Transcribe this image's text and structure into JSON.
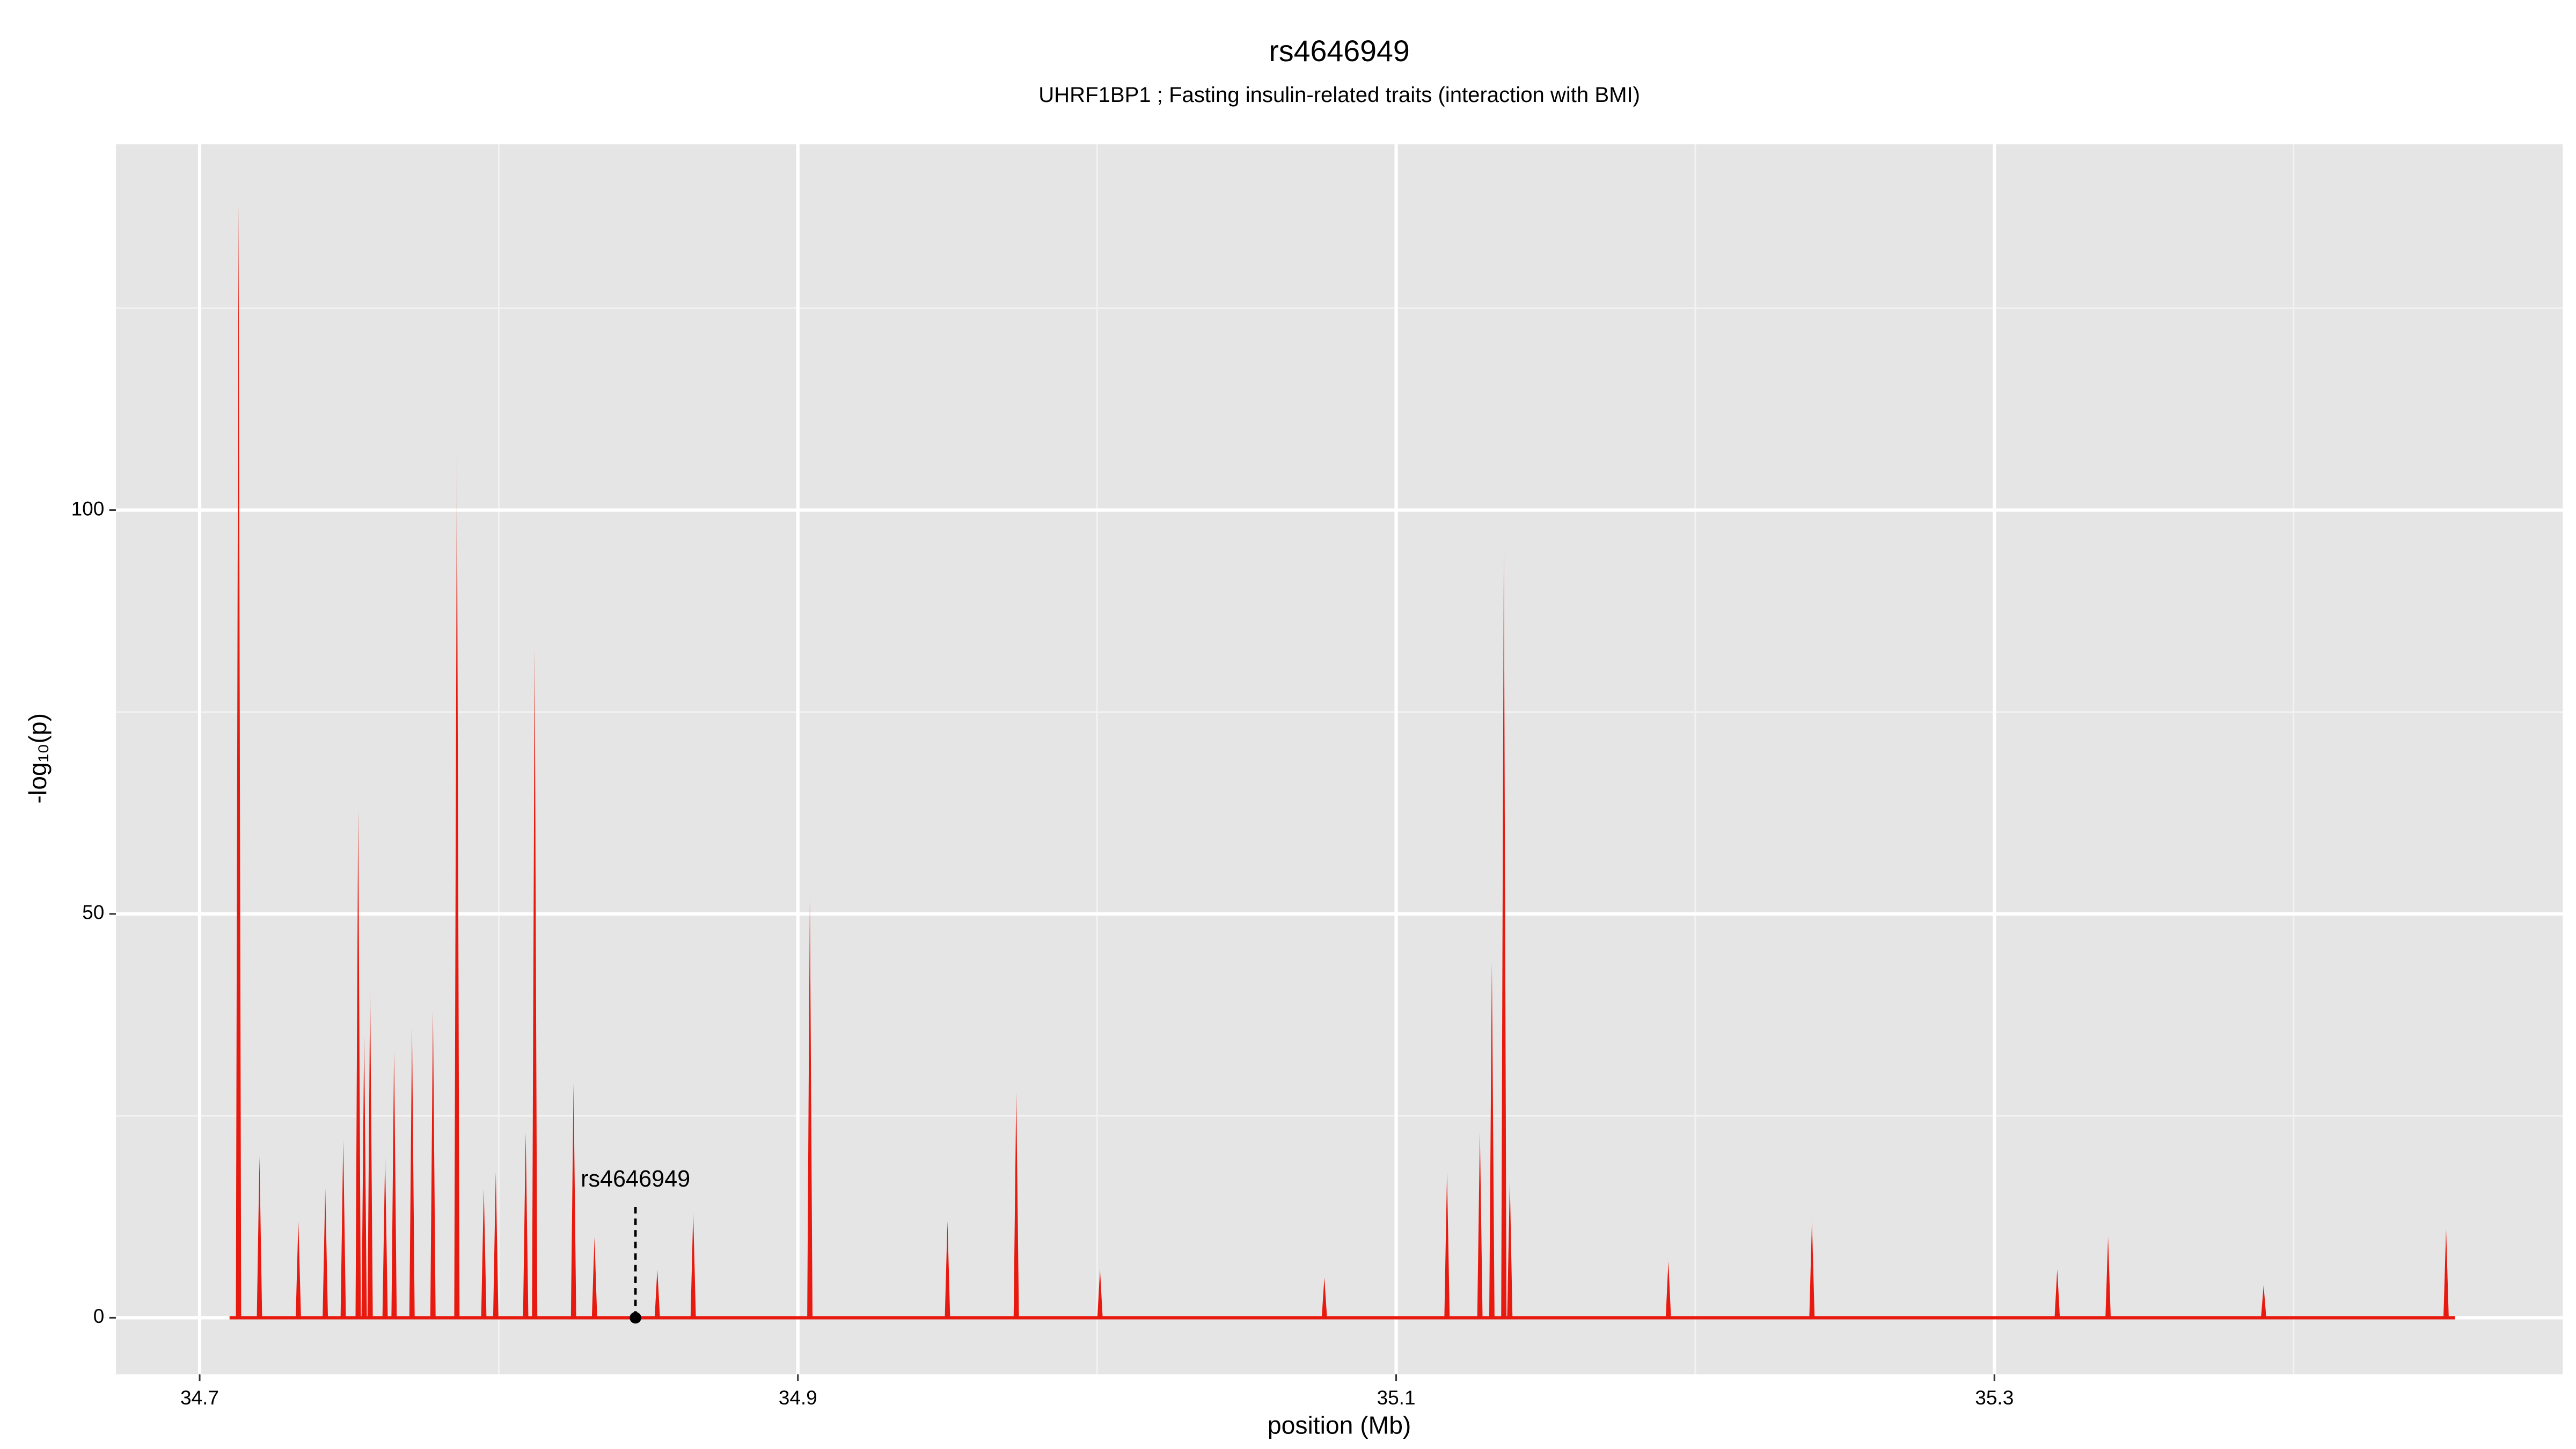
{
  "chart_data": {
    "type": "spike",
    "title": "rs4646949",
    "subtitle": "UHRF1BP1 ; Fasting insulin-related traits (interaction with BMI)",
    "x_label": "position (Mb)",
    "y_label": "-log₁₀(p)",
    "color": "#e8190e",
    "x": [
      34.71,
      34.713,
      34.72,
      34.733,
      34.742,
      34.748,
      34.753,
      34.755,
      34.757,
      34.762,
      34.765,
      34.771,
      34.778,
      34.786,
      34.795,
      34.799,
      34.809,
      34.812,
      34.825,
      34.832,
      34.853,
      34.865,
      34.904,
      34.95,
      34.973,
      35.001,
      35.076,
      35.117,
      35.128,
      35.132,
      35.136,
      35.138,
      35.191,
      35.239,
      35.321,
      35.338,
      35.39,
      35.451,
      35.454
    ],
    "values": [
      0,
      138,
      20,
      12,
      16,
      22,
      63,
      35,
      41,
      20,
      33,
      36,
      38,
      107,
      16,
      18,
      23,
      83,
      29,
      10,
      6,
      13,
      52,
      12,
      28,
      6,
      5,
      18,
      23,
      44,
      96,
      17,
      7,
      12,
      6,
      10,
      4,
      11,
      0
    ],
    "xlim": [
      34.672,
      35.49
    ],
    "ylim": [
      -7,
      145.3
    ],
    "xticks": [
      34.7,
      34.9,
      35.1,
      35.3
    ],
    "yticks": [
      0,
      50,
      100
    ],
    "minor_xticks": [
      34.8,
      35.0,
      35.2,
      35.4
    ],
    "minor_yticks": [
      25,
      75,
      125
    ],
    "grid": true,
    "annotation": {
      "text": "rs4646949",
      "x": 34.8457,
      "y": 0,
      "label_y": 17
    }
  }
}
